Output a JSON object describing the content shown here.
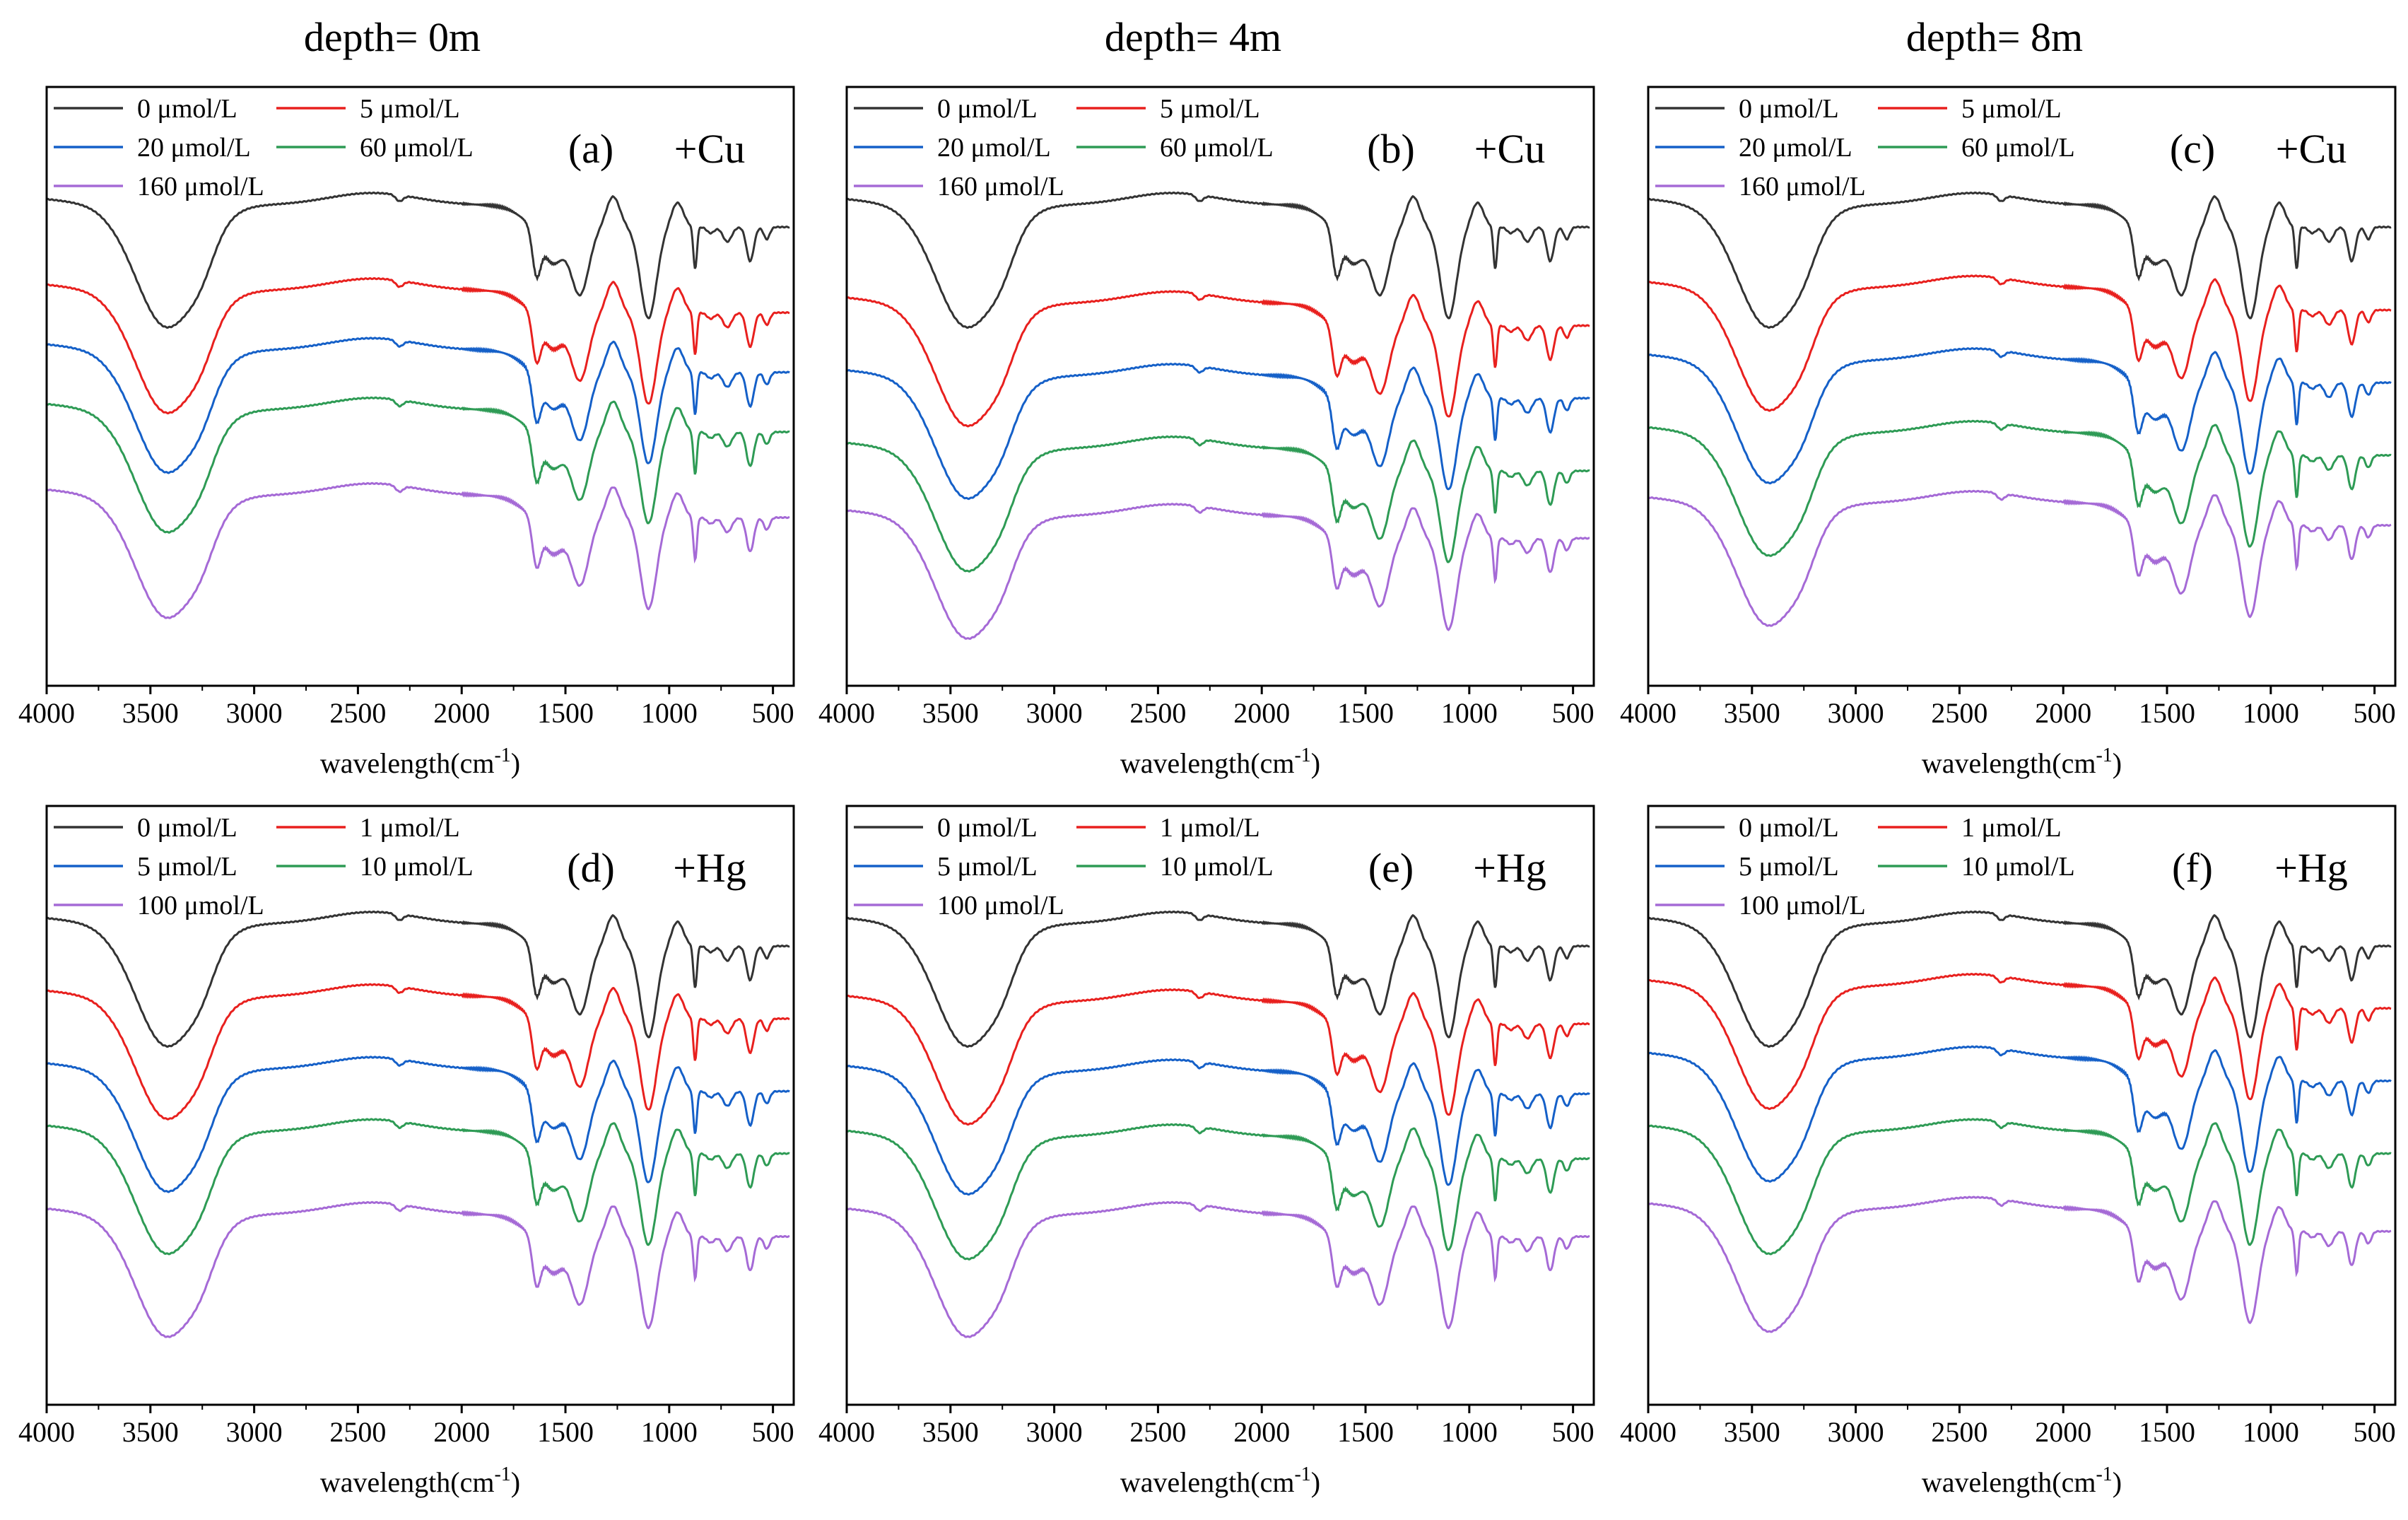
{
  "column_titles": [
    "depth= 0m",
    "depth= 4m",
    "depth= 8m"
  ],
  "colors": {
    "s0": "#333333",
    "s1": "#e8201e",
    "s2": "#1560c8",
    "s3": "#2e9b55",
    "s4": "#a56ad6"
  },
  "chart_data": [
    {
      "type": "line",
      "panel": "(a)",
      "metal": "+Cu",
      "xlabel": "wavelength(cm",
      "xlabel_sup": "-1",
      "xlabel_close": ")",
      "xlim": [
        4000,
        400
      ],
      "xticks": [
        4000,
        3500,
        3000,
        2500,
        2000,
        1500,
        1000,
        500
      ],
      "series": [
        {
          "name": "0 μmol/L",
          "color": "#333333",
          "offset": 0.0
        },
        {
          "name": "5 μmol/L",
          "color": "#e8201e",
          "offset": 0.33
        },
        {
          "name": "20 μmol/L",
          "color": "#1560c8",
          "offset": 0.56
        },
        {
          "name": "60 μmol/L",
          "color": "#2e9b55",
          "offset": 0.79
        },
        {
          "name": "160 μmol/L",
          "color": "#a56ad6",
          "offset": 1.12
        }
      ]
    },
    {
      "type": "line",
      "panel": "(b)",
      "metal": "+Cu",
      "xlabel": "wavelength(cm",
      "xlabel_sup": "-1",
      "xlabel_close": ")",
      "xlim": [
        4000,
        400
      ],
      "xticks": [
        4000,
        3500,
        3000,
        2500,
        2000,
        1500,
        1000,
        500
      ],
      "series": [
        {
          "name": "0 μmol/L",
          "color": "#333333",
          "offset": 0.0
        },
        {
          "name": "5 μmol/L",
          "color": "#e8201e",
          "offset": 0.38
        },
        {
          "name": "20 μmol/L",
          "color": "#1560c8",
          "offset": 0.66
        },
        {
          "name": "60 μmol/L",
          "color": "#2e9b55",
          "offset": 0.94
        },
        {
          "name": "160 μmol/L",
          "color": "#a56ad6",
          "offset": 1.2
        }
      ]
    },
    {
      "type": "line",
      "panel": "(c)",
      "metal": "+Cu",
      "xlabel": "wavelength(cm",
      "xlabel_sup": "-1",
      "xlabel_close": ")",
      "xlim": [
        4000,
        400
      ],
      "xticks": [
        4000,
        3500,
        3000,
        2500,
        2000,
        1500,
        1000,
        500
      ],
      "series": [
        {
          "name": "0 μmol/L",
          "color": "#333333",
          "offset": 0.0
        },
        {
          "name": "5 μmol/L",
          "color": "#e8201e",
          "offset": 0.32
        },
        {
          "name": "20 μmol/L",
          "color": "#1560c8",
          "offset": 0.6
        },
        {
          "name": "60 μmol/L",
          "color": "#2e9b55",
          "offset": 0.88
        },
        {
          "name": "160 μmol/L",
          "color": "#a56ad6",
          "offset": 1.15
        }
      ]
    },
    {
      "type": "line",
      "panel": "(d)",
      "metal": "+Hg",
      "xlabel": "wavelength(cm",
      "xlabel_sup": "-1",
      "xlabel_close": ")",
      "xlim": [
        4000,
        400
      ],
      "xticks": [
        4000,
        3500,
        3000,
        2500,
        2000,
        1500,
        1000,
        500
      ],
      "series": [
        {
          "name": "0 μmol/L",
          "color": "#333333",
          "offset": 0.0
        },
        {
          "name": "1 μmol/L",
          "color": "#e8201e",
          "offset": 0.28
        },
        {
          "name": "5 μmol/L",
          "color": "#1560c8",
          "offset": 0.56
        },
        {
          "name": "10 μmol/L",
          "color": "#2e9b55",
          "offset": 0.8
        },
        {
          "name": "100 μmol/L",
          "color": "#a56ad6",
          "offset": 1.12
        }
      ]
    },
    {
      "type": "line",
      "panel": "(e)",
      "metal": "+Hg",
      "xlabel": "wavelength(cm",
      "xlabel_sup": "-1",
      "xlabel_close": ")",
      "xlim": [
        4000,
        400
      ],
      "xticks": [
        4000,
        3500,
        3000,
        2500,
        2000,
        1500,
        1000,
        500
      ],
      "series": [
        {
          "name": "0 μmol/L",
          "color": "#333333",
          "offset": 0.0
        },
        {
          "name": "1 μmol/L",
          "color": "#e8201e",
          "offset": 0.3
        },
        {
          "name": "5 μmol/L",
          "color": "#1560c8",
          "offset": 0.57
        },
        {
          "name": "10 μmol/L",
          "color": "#2e9b55",
          "offset": 0.82
        },
        {
          "name": "100 μmol/L",
          "color": "#a56ad6",
          "offset": 1.12
        }
      ]
    },
    {
      "type": "line",
      "panel": "(f)",
      "metal": "+Hg",
      "xlabel": "wavelength(cm",
      "xlabel_sup": "-1",
      "xlabel_close": ")",
      "xlim": [
        4000,
        400
      ],
      "xticks": [
        4000,
        3500,
        3000,
        2500,
        2000,
        1500,
        1000,
        500
      ],
      "series": [
        {
          "name": "0 μmol/L",
          "color": "#333333",
          "offset": 0.0
        },
        {
          "name": "1 μmol/L",
          "color": "#e8201e",
          "offset": 0.24
        },
        {
          "name": "5 μmol/L",
          "color": "#1560c8",
          "offset": 0.52
        },
        {
          "name": "10 μmol/L",
          "color": "#2e9b55",
          "offset": 0.8
        },
        {
          "name": "100 μmol/L",
          "color": "#a56ad6",
          "offset": 1.1
        }
      ]
    }
  ]
}
